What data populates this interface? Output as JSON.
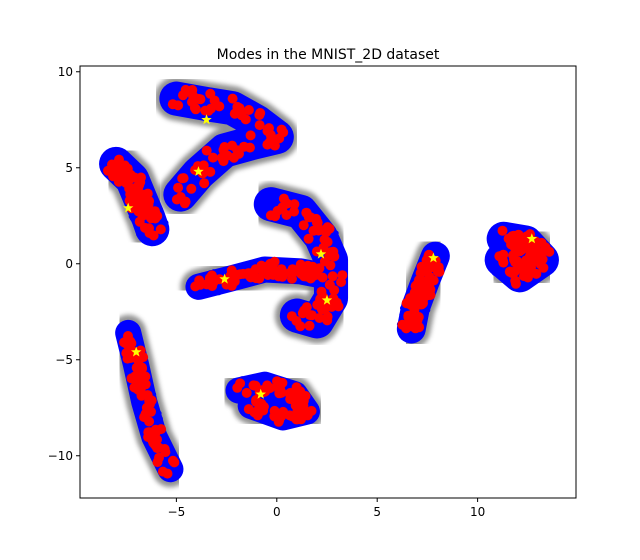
{
  "chart_data": {
    "type": "scatter",
    "title": "Modes in the MNIST_2D dataset",
    "xlabel": "",
    "ylabel": "",
    "xlim": [
      -9.8,
      14.9
    ],
    "ylim": [
      -12.2,
      10.3
    ],
    "xticks": [
      -5,
      0,
      5,
      10
    ],
    "yticks": [
      -10,
      -5,
      0,
      5,
      10
    ],
    "grid": false,
    "colors": {
      "points": "#0000ff",
      "markers": "#ff0000",
      "halo": "#808080",
      "modes": "#ffff00"
    },
    "clusters": [
      {
        "spine": [
          [
            -5.0,
            8.6
          ],
          [
            -3.4,
            8.3
          ],
          [
            -2.2,
            8.1
          ],
          [
            -1.0,
            7.4
          ],
          [
            0.0,
            6.6
          ],
          [
            -1.2,
            6.3
          ],
          [
            -2.6,
            5.9
          ],
          [
            -3.9,
            4.7
          ],
          [
            -4.8,
            3.6
          ]
        ],
        "thickness": 0.75
      },
      {
        "spine": [
          [
            -8.0,
            5.2
          ],
          [
            -7.2,
            4.4
          ],
          [
            -6.8,
            3.4
          ],
          [
            -6.4,
            2.4
          ],
          [
            -6.2,
            1.8
          ]
        ],
        "thickness": 0.75
      },
      {
        "spine": [
          [
            -7.4,
            -3.6
          ],
          [
            -7.0,
            -5.3
          ],
          [
            -6.6,
            -7.2
          ],
          [
            -6.1,
            -9.0
          ],
          [
            -5.3,
            -10.7
          ]
        ],
        "thickness": 0.55
      },
      {
        "spine": [
          [
            -3.9,
            -1.2
          ],
          [
            -2.4,
            -0.8
          ],
          [
            -0.6,
            -0.3
          ],
          [
            1.2,
            -0.4
          ],
          [
            2.2,
            -0.6
          ]
        ],
        "thickness": 0.55
      },
      {
        "spine": [
          [
            -0.3,
            3.1
          ],
          [
            1.2,
            2.7
          ],
          [
            2.2,
            1.4
          ],
          [
            2.7,
            0.2
          ],
          [
            2.7,
            -1.8
          ],
          [
            2.0,
            -3.0
          ],
          [
            1.0,
            -2.7
          ]
        ],
        "thickness": 0.75
      },
      {
        "spine": [
          [
            -1.9,
            -6.6
          ],
          [
            -0.6,
            -6.3
          ],
          [
            0.9,
            -6.8
          ],
          [
            1.5,
            -7.7
          ],
          [
            0.3,
            -8.0
          ],
          [
            -1.3,
            -7.4
          ]
        ],
        "thickness": 0.55
      },
      {
        "spine": [
          [
            7.9,
            0.4
          ],
          [
            7.4,
            -0.9
          ],
          [
            6.9,
            -2.3
          ],
          [
            6.7,
            -3.4
          ]
        ],
        "thickness": 0.62
      },
      {
        "spine": [
          [
            11.3,
            1.3
          ],
          [
            12.4,
            1.1
          ],
          [
            13.2,
            0.2
          ],
          [
            12.1,
            -0.6
          ],
          [
            11.2,
            0.2
          ]
        ],
        "thickness": 0.75
      }
    ],
    "modes": [
      {
        "x": -3.5,
        "y": 7.5
      },
      {
        "x": -3.9,
        "y": 4.8
      },
      {
        "x": -7.4,
        "y": 2.9
      },
      {
        "x": -7.0,
        "y": -4.6
      },
      {
        "x": -2.6,
        "y": -0.8
      },
      {
        "x": 2.2,
        "y": 0.5
      },
      {
        "x": 2.5,
        "y": -1.9
      },
      {
        "x": -0.8,
        "y": -6.8
      },
      {
        "x": 7.8,
        "y": 0.3
      },
      {
        "x": 12.7,
        "y": 1.3
      }
    ]
  }
}
